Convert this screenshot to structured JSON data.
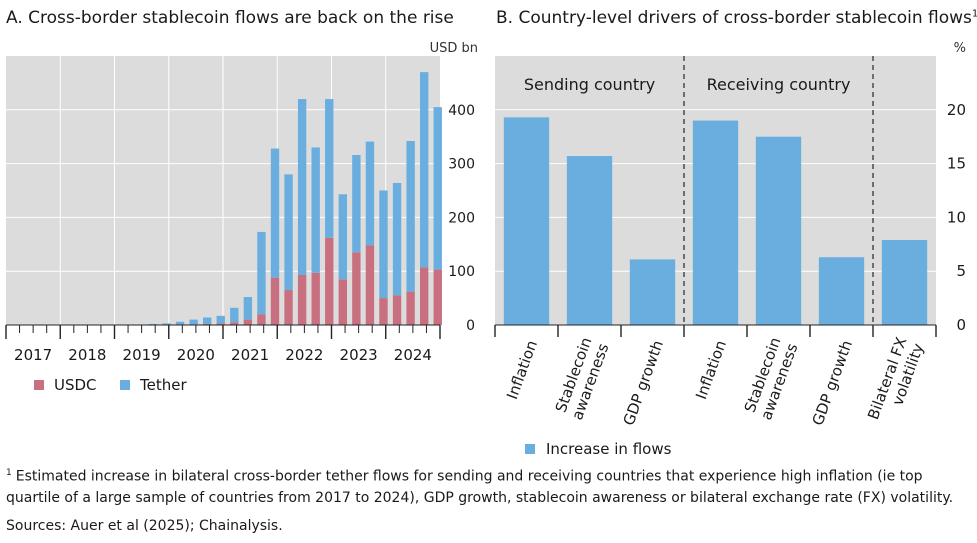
{
  "panel_a": {
    "title": "A. Cross-border stablecoin flows are back on the rise",
    "unit": "USD bn",
    "legend": [
      {
        "label": "USDC",
        "color": "#c8707f"
      },
      {
        "label": "Tether",
        "color": "#6aaedf"
      }
    ]
  },
  "panel_b": {
    "title": "B. Country-level drivers of cross-border stablecoin flows",
    "title_footnote_mark": "1",
    "unit": "%",
    "groups": [
      "Sending country",
      "Receiving country"
    ],
    "legend": [
      {
        "label": "Increase in flows",
        "color": "#6aaedf"
      }
    ]
  },
  "footnote": {
    "mark": "1",
    "text": "Estimated increase in bilateral cross-border tether flows for sending and receiving countries that experience high inflation (ie top quartile of a large sample of countries from 2017 to 2024), GDP growth, stablecoin awareness or bilateral exchange rate (FX) volatility."
  },
  "sources": "Sources: Auer et al (2025); Chainalysis.",
  "colors": {
    "plot_bg": "#dcdcdc",
    "usdc": "#c8707f",
    "tether": "#6aaedf",
    "grid": "#ffffff"
  },
  "chart_data": [
    {
      "type": "bar",
      "stacked": true,
      "title": "A. Cross-border stablecoin flows are back on the rise",
      "ylabel": "USD bn",
      "ylim": [
        0,
        500
      ],
      "yticks": [
        0,
        100,
        200,
        300,
        400
      ],
      "y_axis_side": "right",
      "grid": true,
      "x_tick_labels": [
        "2017",
        "2018",
        "2019",
        "2020",
        "2021",
        "2022",
        "2023",
        "2024"
      ],
      "x_range": [
        2017,
        2025
      ],
      "periods_per_year": 12,
      "bar_every_n_periods": 3,
      "x": [
        "2019Q1",
        "2019Q2",
        "2019Q3",
        "2019Q4",
        "2020Q1",
        "2020Q2",
        "2020Q3",
        "2020Q4",
        "2021Q1",
        "2021Q2",
        "2021Q3",
        "2021Q4",
        "2022Q1",
        "2022Q2",
        "2022Q3",
        "2022Q4",
        "2023Q1",
        "2023Q2",
        "2023Q3",
        "2023Q4",
        "2024Q1",
        "2024Q2",
        "2024Q3",
        "2024Q4"
      ],
      "series": [
        {
          "name": "USDC",
          "color": "#c8707f",
          "values": [
            0,
            0,
            0,
            0,
            1,
            1,
            2,
            3,
            5,
            10,
            20,
            88,
            65,
            93,
            97,
            162,
            85,
            135,
            148,
            50,
            55,
            62,
            107,
            103
          ]
        },
        {
          "name": "Tether",
          "color": "#6aaedf",
          "values": [
            0,
            0,
            2,
            3,
            5,
            9,
            12,
            14,
            27,
            42,
            153,
            240,
            215,
            327,
            233,
            258,
            158,
            181,
            193,
            200,
            209,
            280,
            363,
            302
          ]
        }
      ],
      "legend_position": "bottom-left"
    },
    {
      "type": "bar",
      "title": "B. Country-level drivers of cross-border stablecoin flows",
      "ylabel": "%",
      "ylim": [
        0,
        25
      ],
      "yticks": [
        0,
        5,
        10,
        15,
        20
      ],
      "y_axis_side": "right",
      "grid": true,
      "groups": [
        {
          "name": "Sending country",
          "categories": [
            "Inflation",
            "Stablecoin awareness",
            "GDP growth"
          ],
          "values": [
            19.3,
            15.7,
            6.1
          ]
        },
        {
          "name": "Receiving country",
          "categories": [
            "Inflation",
            "Stablecoin awareness",
            "GDP growth"
          ],
          "values": [
            19.0,
            17.5,
            6.3
          ]
        },
        {
          "name": "",
          "categories": [
            "Bilateral FX volatility"
          ],
          "values": [
            7.9
          ]
        }
      ],
      "categories": [
        "Inflation",
        "Stablecoin awareness",
        "GDP growth",
        "Inflation",
        "Stablecoin awareness",
        "GDP growth",
        "Bilateral FX volatility"
      ],
      "series": [
        {
          "name": "Increase in flows",
          "color": "#6aaedf",
          "values": [
            19.3,
            15.7,
            6.1,
            19.0,
            17.5,
            6.3,
            7.9
          ]
        }
      ],
      "legend_position": "bottom-center"
    }
  ]
}
